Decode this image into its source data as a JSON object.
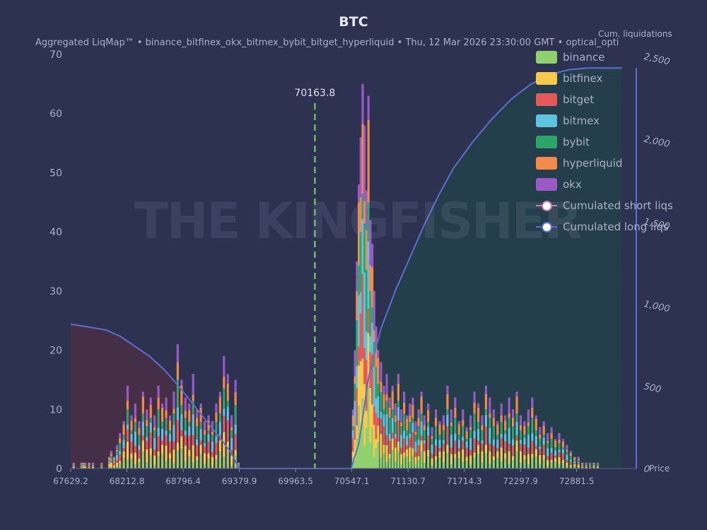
{
  "header": {
    "title": "BTC",
    "subtitle": "Aggregated LiqMap™  •  binance_bitfinex_okx_bitmex_bybit_bitget_hyperliquid  •  Thu, 12 Mar 2026 23:30:00 GMT  •  optical_opti",
    "cum_axis_label": "Cum. liquidations"
  },
  "watermark": "THE KINGFISHER",
  "colors": {
    "binance": "#8fd16f",
    "bitfinex": "#f7c94c",
    "bitget": "#e45a5a",
    "bitmex": "#5fc3dd",
    "bybit": "#2fa46a",
    "hyperliquid": "#f48a4a",
    "okx": "#9b59c6",
    "long_line": "#5b6fd0",
    "short_line": "#d07aa8",
    "price_line": "#6cbf5c"
  },
  "chart_data": {
    "type": "bar",
    "title": "BTC",
    "xlabel": "Price",
    "ylabel": "",
    "y2label": "Cum. liquidations",
    "xlim": [
      67629.2,
      73500
    ],
    "ylim": [
      0,
      70
    ],
    "y2lim": [
      0,
      2500
    ],
    "x_ticks": [
      "67629.2",
      "68212.8",
      "68796.4",
      "69379.9",
      "69963.5",
      "70547.1",
      "71130.7",
      "71714.3",
      "72297.9",
      "72881.5"
    ],
    "y_ticks": [
      "0",
      "10",
      "20",
      "30",
      "40",
      "50",
      "60",
      "70"
    ],
    "y2_ticks": [
      "0",
      "500",
      "1,000",
      "1,500",
      "2,000",
      "2,500"
    ],
    "current_price": 70163.8,
    "current_price_label": "70163.8",
    "exchanges": [
      "binance",
      "bitfinex",
      "bitget",
      "bitmex",
      "bybit",
      "hyperliquid",
      "okx"
    ],
    "bins": [
      {
        "x": 67660,
        "total": 1
      },
      {
        "x": 67740,
        "total": 1
      },
      {
        "x": 67760,
        "total": 1
      },
      {
        "x": 67780,
        "total": 1
      },
      {
        "x": 67820,
        "total": 1
      },
      {
        "x": 67860,
        "total": 1
      },
      {
        "x": 67950,
        "total": 1
      },
      {
        "x": 68030,
        "total": 2
      },
      {
        "x": 68050,
        "total": 3
      },
      {
        "x": 68080,
        "total": 2
      },
      {
        "x": 68110,
        "total": 4
      },
      {
        "x": 68140,
        "total": 6
      },
      {
        "x": 68180,
        "total": 8
      },
      {
        "x": 68220,
        "total": 14
      },
      {
        "x": 68260,
        "total": 9
      },
      {
        "x": 68300,
        "total": 11
      },
      {
        "x": 68340,
        "total": 8
      },
      {
        "x": 68380,
        "total": 13
      },
      {
        "x": 68420,
        "total": 10
      },
      {
        "x": 68460,
        "total": 12
      },
      {
        "x": 68500,
        "total": 9
      },
      {
        "x": 68540,
        "total": 14
      },
      {
        "x": 68580,
        "total": 11
      },
      {
        "x": 68620,
        "total": 12
      },
      {
        "x": 68660,
        "total": 9
      },
      {
        "x": 68700,
        "total": 13
      },
      {
        "x": 68740,
        "total": 21
      },
      {
        "x": 68780,
        "total": 15
      },
      {
        "x": 68820,
        "total": 12
      },
      {
        "x": 68860,
        "total": 11
      },
      {
        "x": 68900,
        "total": 16
      },
      {
        "x": 68940,
        "total": 10
      },
      {
        "x": 68980,
        "total": 11
      },
      {
        "x": 69020,
        "total": 8
      },
      {
        "x": 69060,
        "total": 9
      },
      {
        "x": 69100,
        "total": 8
      },
      {
        "x": 69140,
        "total": 11
      },
      {
        "x": 69180,
        "total": 13
      },
      {
        "x": 69220,
        "total": 19
      },
      {
        "x": 69260,
        "total": 16
      },
      {
        "x": 69300,
        "total": 9
      },
      {
        "x": 69340,
        "total": 15
      },
      {
        "x": 69370,
        "total": 1
      },
      {
        "x": 69420,
        "total": 0
      },
      {
        "x": 70560,
        "total": 10
      },
      {
        "x": 70580,
        "total": 20
      },
      {
        "x": 70600,
        "total": 35
      },
      {
        "x": 70620,
        "total": 48
      },
      {
        "x": 70640,
        "total": 56
      },
      {
        "x": 70660,
        "total": 65
      },
      {
        "x": 70680,
        "total": 58
      },
      {
        "x": 70700,
        "total": 47
      },
      {
        "x": 70720,
        "total": 63
      },
      {
        "x": 70740,
        "total": 42
      },
      {
        "x": 70760,
        "total": 38
      },
      {
        "x": 70780,
        "total": 30
      },
      {
        "x": 70800,
        "total": 24
      },
      {
        "x": 70820,
        "total": 20
      },
      {
        "x": 70850,
        "total": 18
      },
      {
        "x": 70880,
        "total": 14
      },
      {
        "x": 70910,
        "total": 16
      },
      {
        "x": 70940,
        "total": 12
      },
      {
        "x": 70970,
        "total": 14
      },
      {
        "x": 71000,
        "total": 11
      },
      {
        "x": 71030,
        "total": 16
      },
      {
        "x": 71060,
        "total": 10
      },
      {
        "x": 71090,
        "total": 13
      },
      {
        "x": 71120,
        "total": 9
      },
      {
        "x": 71150,
        "total": 11
      },
      {
        "x": 71180,
        "total": 12
      },
      {
        "x": 71210,
        "total": 8
      },
      {
        "x": 71240,
        "total": 10
      },
      {
        "x": 71270,
        "total": 13
      },
      {
        "x": 71300,
        "total": 9
      },
      {
        "x": 71340,
        "total": 11
      },
      {
        "x": 71380,
        "total": 7
      },
      {
        "x": 71420,
        "total": 10
      },
      {
        "x": 71460,
        "total": 8
      },
      {
        "x": 71500,
        "total": 9
      },
      {
        "x": 71540,
        "total": 14
      },
      {
        "x": 71580,
        "total": 10
      },
      {
        "x": 71620,
        "total": 12
      },
      {
        "x": 71660,
        "total": 8
      },
      {
        "x": 71700,
        "total": 10
      },
      {
        "x": 71740,
        "total": 7
      },
      {
        "x": 71780,
        "total": 9
      },
      {
        "x": 71820,
        "total": 13
      },
      {
        "x": 71860,
        "total": 11
      },
      {
        "x": 71900,
        "total": 9
      },
      {
        "x": 71940,
        "total": 14
      },
      {
        "x": 71980,
        "total": 12
      },
      {
        "x": 72020,
        "total": 10
      },
      {
        "x": 72060,
        "total": 8
      },
      {
        "x": 72100,
        "total": 11
      },
      {
        "x": 72140,
        "total": 9
      },
      {
        "x": 72180,
        "total": 12
      },
      {
        "x": 72220,
        "total": 10
      },
      {
        "x": 72260,
        "total": 13
      },
      {
        "x": 72300,
        "total": 9
      },
      {
        "x": 72340,
        "total": 8
      },
      {
        "x": 72380,
        "total": 10
      },
      {
        "x": 72420,
        "total": 12
      },
      {
        "x": 72460,
        "total": 9
      },
      {
        "x": 72500,
        "total": 7
      },
      {
        "x": 72540,
        "total": 8
      },
      {
        "x": 72580,
        "total": 6
      },
      {
        "x": 72620,
        "total": 7
      },
      {
        "x": 72660,
        "total": 5
      },
      {
        "x": 72700,
        "total": 6
      },
      {
        "x": 72740,
        "total": 5
      },
      {
        "x": 72780,
        "total": 4
      },
      {
        "x": 72820,
        "total": 3
      },
      {
        "x": 72860,
        "total": 2
      },
      {
        "x": 72900,
        "total": 2
      },
      {
        "x": 72940,
        "total": 1
      },
      {
        "x": 72980,
        "total": 1
      },
      {
        "x": 73020,
        "total": 1
      },
      {
        "x": 73060,
        "total": 1
      },
      {
        "x": 73100,
        "total": 1
      }
    ],
    "cum_short_line": {
      "name": "Cumulated short liqs",
      "x": [
        67629.2,
        67800,
        68000,
        68150,
        68300,
        68450,
        68600,
        68750,
        68900,
        69050,
        69200,
        69300,
        69350,
        69380,
        70560
      ],
      "y": [
        875,
        860,
        840,
        800,
        740,
        680,
        600,
        500,
        390,
        280,
        170,
        90,
        30,
        0,
        0
      ]
    },
    "cum_long_line": {
      "name": "Cumulated long liqs",
      "x": [
        69380,
        70540,
        70620,
        70720,
        70850,
        71000,
        71150,
        71300,
        71450,
        71600,
        71800,
        72000,
        72200,
        72400,
        72600,
        72800,
        73000,
        73300,
        73350
      ],
      "y": [
        0,
        0,
        150,
        550,
        850,
        1080,
        1280,
        1480,
        1660,
        1820,
        1980,
        2120,
        2240,
        2330,
        2390,
        2420,
        2430,
        2430,
        2430
      ]
    }
  },
  "legend": [
    {
      "key": "binance",
      "label": "binance"
    },
    {
      "key": "bitfinex",
      "label": "bitfinex"
    },
    {
      "key": "bitget",
      "label": "bitget"
    },
    {
      "key": "bitmex",
      "label": "bitmex"
    },
    {
      "key": "bybit",
      "label": "bybit"
    },
    {
      "key": "hyperliquid",
      "label": "hyperliquid"
    },
    {
      "key": "okx",
      "label": "okx"
    }
  ],
  "legend_lines": [
    {
      "key": "short_line",
      "label": "Cumulated short liqs"
    },
    {
      "key": "long_line",
      "label": "Cumulated long liqs"
    }
  ]
}
